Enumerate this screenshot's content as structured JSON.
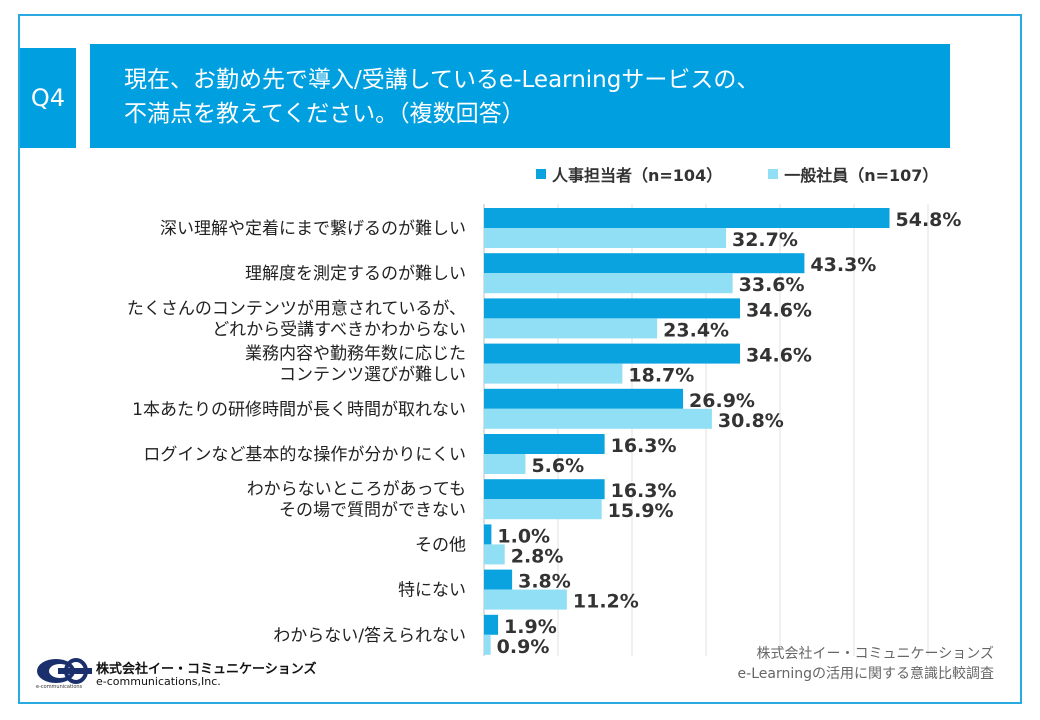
{
  "header": {
    "badge": "Q4",
    "title_line1": "現在、お勤め先で導入/受講しているe-Learningサービスの、",
    "title_line2": "不満点を教えてください。（複数回答）"
  },
  "legend": {
    "hr_label": "人事担当者（n=104）",
    "general_label": "一般社員（n=107）"
  },
  "colors": {
    "accent": "#009fe0",
    "series_hr": "#0aa3e0",
    "series_general": "#91dff4",
    "frame": "#29abe2"
  },
  "chart_data": {
    "type": "bar",
    "orientation": "horizontal",
    "categories": [
      [
        "深い理解や定着にまで繋げるのが難しい"
      ],
      [
        "理解度を測定するのが難しい"
      ],
      [
        "たくさんのコンテンツが用意されているが、",
        "どれから受講すべきかわからない"
      ],
      [
        "業務内容や勤務年数に応じた",
        "コンテンツ選びが難しい"
      ],
      [
        "1本あたりの研修時間が長く時間が取れない"
      ],
      [
        "ログインなど基本的な操作が分かりにくい"
      ],
      [
        "わからないところがあっても",
        "その場で質問ができない"
      ],
      [
        "その他"
      ],
      [
        "特にない"
      ],
      [
        "わからない/答えられない"
      ]
    ],
    "series": [
      {
        "name": "人事担当者（n=104）",
        "color": "#0aa3e0",
        "values": [
          54.8,
          43.3,
          34.6,
          34.6,
          26.9,
          16.3,
          16.3,
          1.0,
          3.8,
          1.9
        ]
      },
      {
        "name": "一般社員（n=107）",
        "color": "#91dff4",
        "values": [
          32.7,
          33.6,
          23.4,
          18.7,
          30.8,
          5.6,
          15.9,
          2.8,
          11.2,
          0.9
        ]
      }
    ],
    "value_suffix": "%",
    "xlim": [
      0,
      60
    ],
    "grid": true,
    "legend_position": "top-right"
  },
  "source": {
    "line1": "株式会社イー・コミュニケーションズ",
    "line2": "e-Learningの活用に関する意識比較調査"
  },
  "logo": {
    "name_jp": "株式会社イー・コミュニケーションズ",
    "name_en": "e-communications,Inc.",
    "tagline": "e-communications"
  }
}
